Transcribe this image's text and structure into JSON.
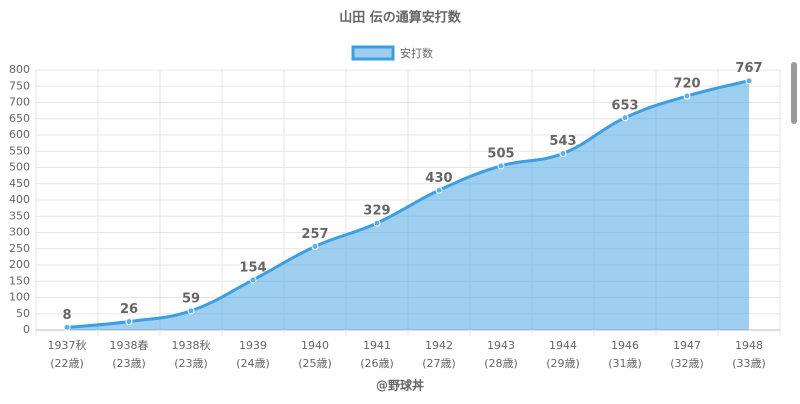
{
  "chart_data": {
    "type": "line",
    "title": "山田 伝の通算安打数",
    "categories": [
      "1937秋",
      "1938春",
      "1938秋",
      "1939",
      "1940",
      "1941",
      "1942",
      "1943",
      "1944",
      "1946",
      "1947",
      "1948"
    ],
    "category_ages": [
      "(22歳)",
      "(23歳)",
      "(23歳)",
      "(24歳)",
      "(25歳)",
      "(26歳)",
      "(27歳)",
      "(28歳)",
      "(29歳)",
      "(31歳)",
      "(32歳)",
      "(33歳)"
    ],
    "series": [
      {
        "name": "安打数",
        "color": "#3d9fe3",
        "values": [
          8,
          26,
          59,
          154,
          257,
          329,
          430,
          505,
          543,
          653,
          720,
          767
        ]
      }
    ],
    "ylim": [
      0,
      800
    ],
    "yticks": [
      0,
      50,
      100,
      150,
      200,
      250,
      300,
      350,
      400,
      450,
      500,
      550,
      600,
      650,
      700,
      750,
      800
    ],
    "grid": true,
    "fill": true,
    "legend": "top",
    "footer": "@野球丼"
  }
}
